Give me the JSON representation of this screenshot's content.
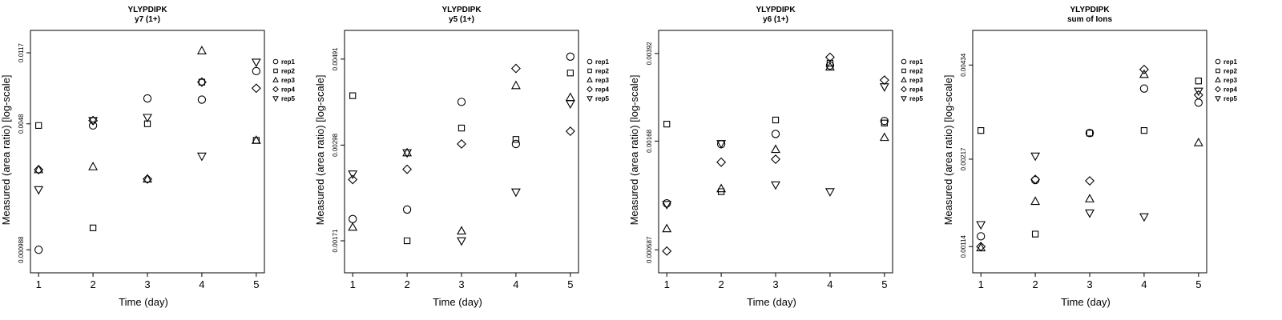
{
  "chart_data": [
    {
      "type": "scatter",
      "title": "YLYPDIPK",
      "subtitle": "y7 (1+)",
      "xlabel": "Time (day)",
      "ylabel": "Measured (area ratio) [log-scale]",
      "y_scale": "log",
      "x_ticks": [
        1,
        2,
        3,
        4,
        5
      ],
      "y_ticks": [
        "0.000988",
        "0.0048",
        "0.0117"
      ],
      "y_tick_values": [
        0.000988,
        0.0048,
        0.0117
      ],
      "ylim": [
        0.00074,
        0.0155
      ],
      "grid": false,
      "legend_position": "right",
      "series": [
        {
          "name": "rep1",
          "marker": "circle",
          "x": [
            1,
            2,
            3,
            4,
            5
          ],
          "y": [
            0.000988,
            0.0047,
            0.0066,
            0.0065,
            0.0093
          ]
        },
        {
          "name": "rep2",
          "marker": "square",
          "x": [
            1,
            2,
            3,
            4,
            5
          ],
          "y": [
            0.0047,
            0.0013,
            0.0048,
            0.0081,
            0.0039
          ]
        },
        {
          "name": "rep3",
          "marker": "triangle-up",
          "x": [
            1,
            2,
            3,
            4,
            5
          ],
          "y": [
            0.0027,
            0.0028,
            0.0024,
            0.012,
            0.0039
          ]
        },
        {
          "name": "rep4",
          "marker": "diamond",
          "x": [
            1,
            2,
            3,
            4,
            5
          ],
          "y": [
            0.0027,
            0.005,
            0.0024,
            0.0081,
            0.0075
          ]
        },
        {
          "name": "rep5",
          "marker": "triangle-down",
          "x": [
            1,
            2,
            3,
            4,
            5
          ],
          "y": [
            0.0021,
            0.005,
            0.0052,
            0.0032,
            0.0104
          ]
        }
      ]
    },
    {
      "type": "scatter",
      "title": "YLYPDIPK",
      "subtitle": "y5 (1+)",
      "xlabel": "Time (day)",
      "ylabel": "Measured (area ratio) [log-scale]",
      "y_scale": "log",
      "x_ticks": [
        1,
        2,
        3,
        4,
        5
      ],
      "y_ticks": [
        "0.00171",
        "0.00298",
        "0.00491"
      ],
      "y_tick_values": [
        0.00171,
        0.00298,
        0.00491
      ],
      "ylim": [
        0.00142,
        0.0058
      ],
      "grid": false,
      "legend_position": "right",
      "series": [
        {
          "name": "rep1",
          "marker": "circle",
          "x": [
            1,
            2,
            3,
            4,
            5
          ],
          "y": [
            0.00194,
            0.00205,
            0.00383,
            0.003,
            0.00498
          ]
        },
        {
          "name": "rep2",
          "marker": "square",
          "x": [
            1,
            2,
            3,
            4,
            5
          ],
          "y": [
            0.00397,
            0.00171,
            0.00329,
            0.00308,
            0.00453
          ]
        },
        {
          "name": "rep3",
          "marker": "triangle-up",
          "x": [
            1,
            2,
            3,
            4,
            5
          ],
          "y": [
            0.00185,
            0.00285,
            0.00181,
            0.00421,
            0.00393
          ]
        },
        {
          "name": "rep4",
          "marker": "diamond",
          "x": [
            1,
            2,
            3,
            4,
            5
          ],
          "y": [
            0.00244,
            0.00259,
            0.003,
            0.00465,
            0.00323
          ]
        },
        {
          "name": "rep5",
          "marker": "triangle-down",
          "x": [
            1,
            2,
            3,
            4,
            5
          ],
          "y": [
            0.00252,
            0.00285,
            0.00171,
            0.00227,
            0.00379
          ]
        }
      ]
    },
    {
      "type": "scatter",
      "title": "YLYPDIPK",
      "subtitle": "y6 (1+)",
      "xlabel": "Time (day)",
      "ylabel": "Measured (area ratio) [log-scale]",
      "y_scale": "log",
      "x_ticks": [
        1,
        2,
        3,
        4,
        5
      ],
      "y_ticks": [
        "0.000587",
        "0.00168",
        "0.00392"
      ],
      "y_tick_values": [
        0.000587,
        0.00168,
        0.00392
      ],
      "ylim": [
        0.00047,
        0.0049
      ],
      "grid": false,
      "legend_position": "right",
      "series": [
        {
          "name": "rep1",
          "marker": "circle",
          "x": [
            1,
            2,
            3,
            4,
            5
          ],
          "y": [
            0.00092,
            0.00163,
            0.0018,
            0.00349,
            0.00204
          ]
        },
        {
          "name": "rep2",
          "marker": "square",
          "x": [
            1,
            2,
            3,
            4,
            5
          ],
          "y": [
            0.00198,
            0.00103,
            0.00206,
            0.00357,
            0.002
          ]
        },
        {
          "name": "rep3",
          "marker": "triangle-up",
          "x": [
            1,
            2,
            3,
            4,
            5
          ],
          "y": [
            0.00072,
            0.00106,
            0.00155,
            0.00344,
            0.00174
          ]
        },
        {
          "name": "rep4",
          "marker": "diamond",
          "x": [
            1,
            2,
            3,
            4,
            5
          ],
          "y": [
            0.00058,
            0.00137,
            0.00141,
            0.00378,
            0.00303
          ]
        },
        {
          "name": "rep5",
          "marker": "triangle-down",
          "x": [
            1,
            2,
            3,
            4,
            5
          ],
          "y": [
            0.00091,
            0.00164,
            0.0011,
            0.00103,
            0.00284
          ]
        }
      ]
    },
    {
      "type": "scatter",
      "title": "YLYPDIPK",
      "subtitle": "sum of Ions",
      "xlabel": "Time (day)",
      "ylabel": "Measured (area ratio) [log-scale]",
      "y_scale": "log",
      "x_ticks": [
        1,
        2,
        3,
        4,
        5
      ],
      "y_ticks": [
        "0.00114",
        "0.00217",
        "0.00434"
      ],
      "y_tick_values": [
        0.00114,
        0.00217,
        0.00434
      ],
      "ylim": [
        0.00094,
        0.0056
      ],
      "grid": false,
      "legend_position": "right",
      "series": [
        {
          "name": "rep1",
          "marker": "circle",
          "x": [
            1,
            2,
            3,
            4,
            5
          ],
          "y": [
            0.00123,
            0.00186,
            0.00263,
            0.00365,
            0.00329
          ]
        },
        {
          "name": "rep2",
          "marker": "square",
          "x": [
            1,
            2,
            3,
            4,
            5
          ],
          "y": [
            0.00268,
            0.00125,
            0.00263,
            0.00268,
            0.00386
          ]
        },
        {
          "name": "rep3",
          "marker": "triangle-up",
          "x": [
            1,
            2,
            3,
            4,
            5
          ],
          "y": [
            0.00113,
            0.00159,
            0.00162,
            0.00405,
            0.00245
          ]
        },
        {
          "name": "rep4",
          "marker": "diamond",
          "x": [
            1,
            2,
            3,
            4,
            5
          ],
          "y": [
            0.00114,
            0.00187,
            0.00185,
            0.0042,
            0.00348
          ]
        },
        {
          "name": "rep5",
          "marker": "triangle-down",
          "x": [
            1,
            2,
            3,
            4,
            5
          ],
          "y": [
            0.00134,
            0.00222,
            0.00146,
            0.00142,
            0.00358
          ]
        }
      ]
    }
  ]
}
